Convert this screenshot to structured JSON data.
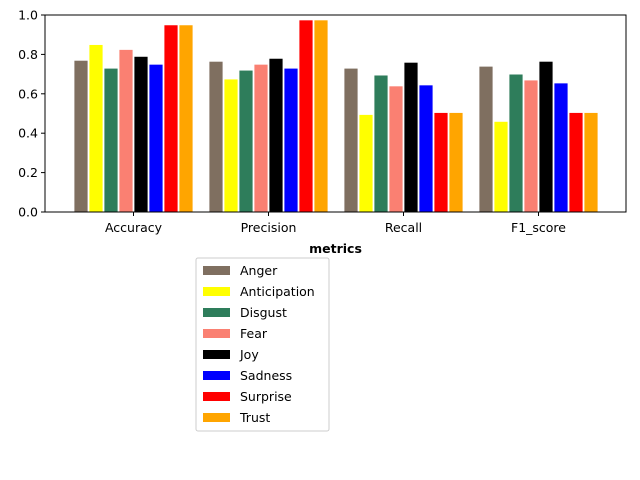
{
  "chart_data": {
    "type": "bar",
    "title": "",
    "xlabel": "metrics",
    "ylabel": "",
    "ylim": [
      0,
      1.0
    ],
    "yticks": [
      "0.0",
      "0.2",
      "0.4",
      "0.6",
      "0.8",
      "1.0"
    ],
    "ytick_values": [
      0.0,
      0.2,
      0.4,
      0.6,
      0.8,
      1.0
    ],
    "grid": false,
    "legend_position": "below",
    "categories": [
      "Accuracy",
      "Precision",
      "Recall",
      "F1_score"
    ],
    "series": [
      {
        "name": "Anger",
        "color": "#7f6f60",
        "values": [
          0.77,
          0.765,
          0.73,
          0.74
        ]
      },
      {
        "name": "Anticipation",
        "color": "#ffff00",
        "values": [
          0.85,
          0.675,
          0.495,
          0.46
        ]
      },
      {
        "name": "Disgust",
        "color": "#2e7d5b",
        "values": [
          0.73,
          0.72,
          0.695,
          0.7
        ]
      },
      {
        "name": "Fear",
        "color": "#fa8072",
        "values": [
          0.825,
          0.75,
          0.64,
          0.67
        ]
      },
      {
        "name": "Joy",
        "color": "#000000",
        "values": [
          0.79,
          0.78,
          0.76,
          0.765
        ]
      },
      {
        "name": "Sadness",
        "color": "#0000ff",
        "values": [
          0.75,
          0.73,
          0.645,
          0.655
        ]
      },
      {
        "name": "Surprise",
        "color": "#ff0000",
        "values": [
          0.95,
          0.975,
          0.505,
          0.505
        ]
      },
      {
        "name": "Trust",
        "color": "#ffa500",
        "values": [
          0.95,
          0.975,
          0.505,
          0.505
        ]
      }
    ]
  }
}
